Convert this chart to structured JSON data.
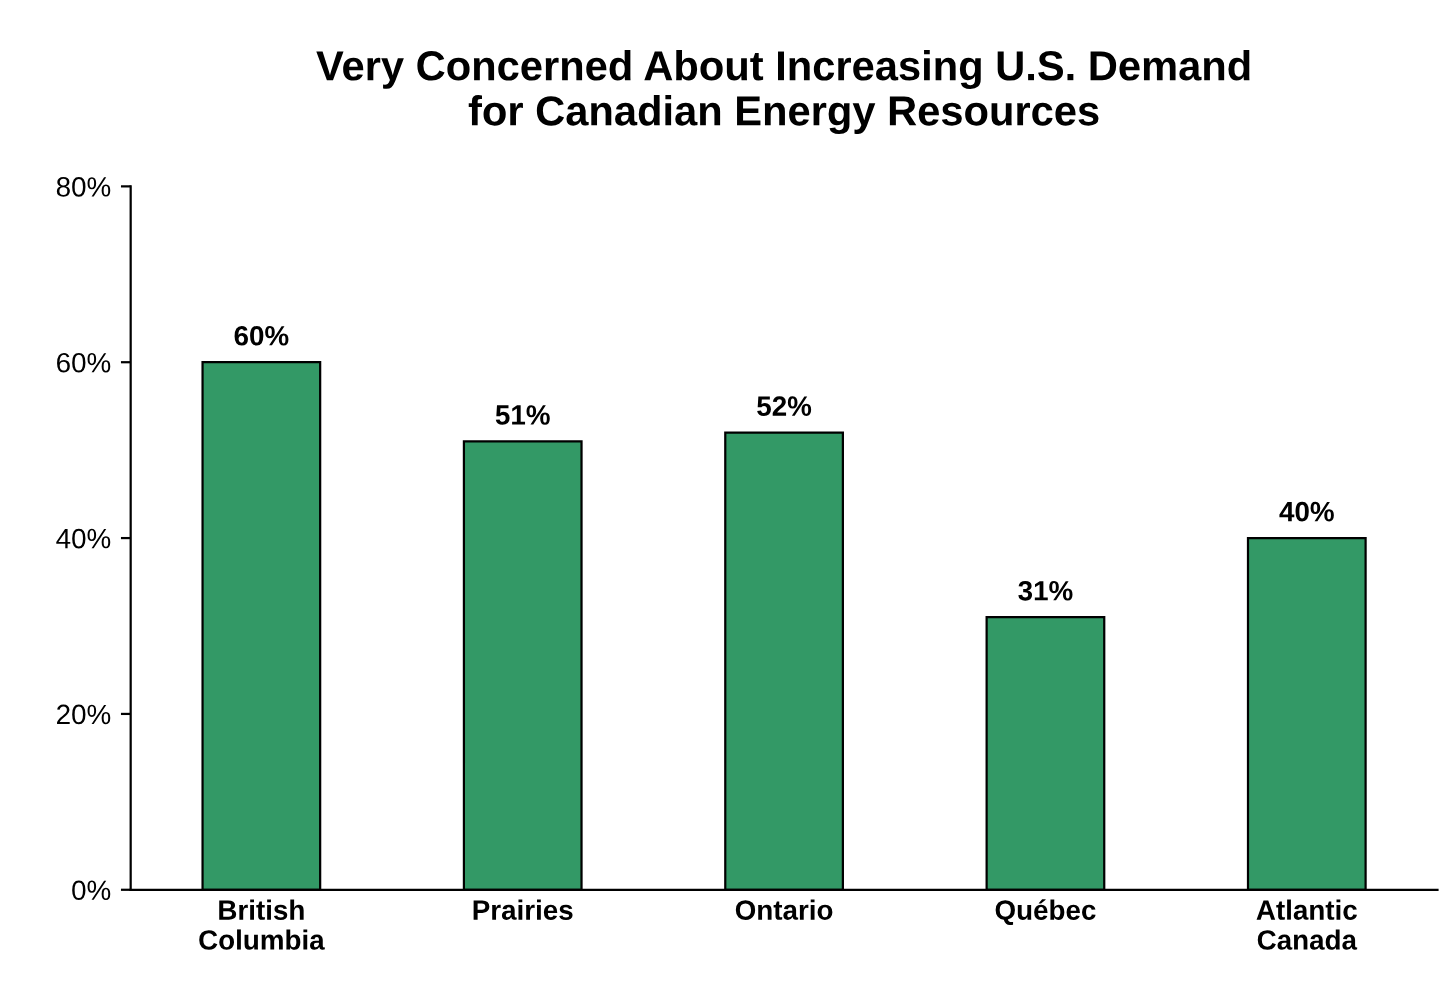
{
  "chart_data": {
    "type": "bar",
    "title": "Very Concerned About Increasing U.S. Demand\nfor Canadian Energy Resources",
    "categories": [
      "British Columbia",
      "Prairies",
      "Ontario",
      "Québec",
      "Atlantic Canada"
    ],
    "values": [
      60,
      51,
      52,
      31,
      40
    ],
    "value_labels": [
      "60%",
      "51%",
      "52%",
      "31%",
      "40%"
    ],
    "color": "#339966",
    "ylim": [
      0,
      80
    ],
    "yticks": [
      {
        "value": 0,
        "label": "0%"
      },
      {
        "value": 20,
        "label": "20%"
      },
      {
        "value": 40,
        "label": "40%"
      },
      {
        "value": 60,
        "label": "60%"
      },
      {
        "value": 80,
        "label": "80%"
      }
    ],
    "grid": false,
    "legend": false
  }
}
